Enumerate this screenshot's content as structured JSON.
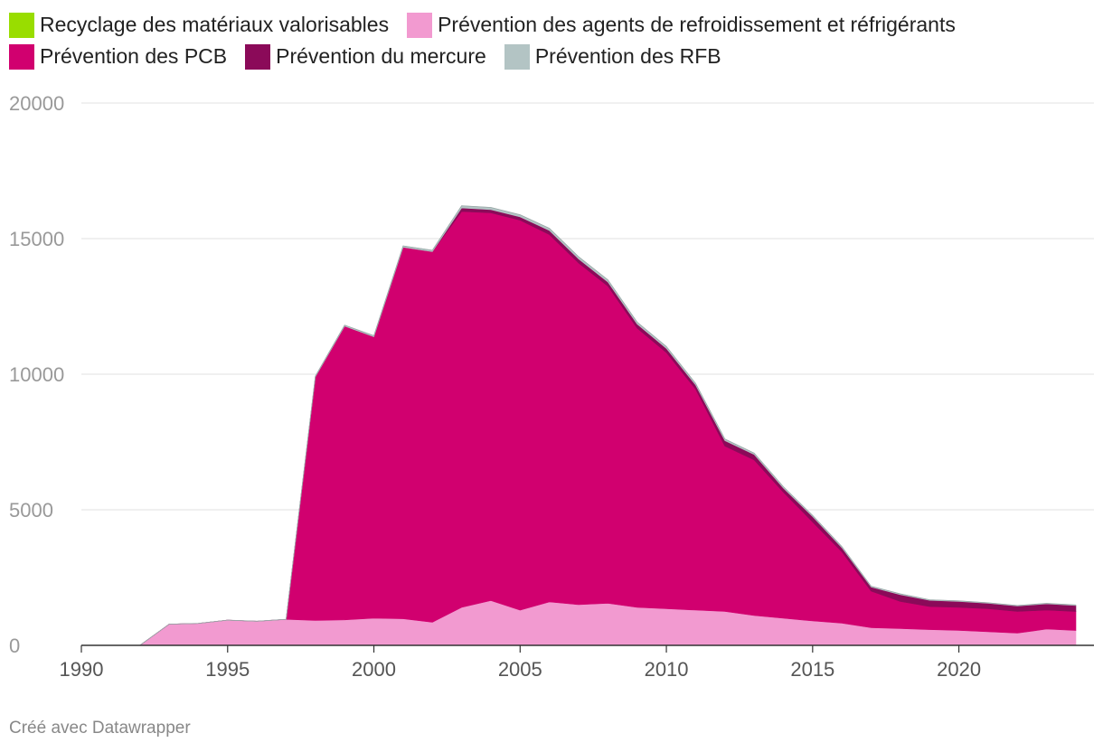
{
  "chart_data": {
    "type": "area",
    "stacked": true,
    "x": [
      1990,
      1991,
      1992,
      1993,
      1994,
      1995,
      1996,
      1997,
      1998,
      1999,
      2000,
      2001,
      2002,
      2003,
      2004,
      2005,
      2006,
      2007,
      2008,
      2009,
      2010,
      2011,
      2012,
      2013,
      2014,
      2015,
      2016,
      2017,
      2018,
      2019,
      2020,
      2021,
      2022,
      2023,
      2024
    ],
    "series": [
      {
        "name": "Recyclage des matériaux valorisables",
        "color": "#99dd00",
        "values": [
          0,
          0,
          0,
          0,
          0,
          0,
          0,
          0,
          0,
          0,
          0,
          0,
          0,
          0,
          0,
          0,
          0,
          0,
          0,
          0,
          0,
          0,
          0,
          0,
          0,
          0,
          0,
          0,
          0,
          0,
          0,
          0,
          0,
          0,
          0
        ]
      },
      {
        "name": "Prévention des agents de refroidissement et réfrigérants",
        "color": "#f29ad0",
        "values": [
          0,
          0,
          0,
          780,
          810,
          930,
          890,
          960,
          920,
          940,
          1000,
          980,
          850,
          1400,
          1650,
          1300,
          1600,
          1500,
          1550,
          1400,
          1350,
          1300,
          1250,
          1100,
          1000,
          900,
          820,
          650,
          620,
          580,
          550,
          500,
          450,
          600,
          550
        ]
      },
      {
        "name": "Prévention des PCB",
        "color": "#d1006f",
        "values": [
          0,
          0,
          0,
          0,
          0,
          0,
          0,
          0,
          8980,
          10830,
          10380,
          13700,
          13670,
          14600,
          14300,
          14380,
          13550,
          12600,
          11700,
          10300,
          9450,
          8150,
          6100,
          5740,
          4650,
          3650,
          2630,
          1350,
          1000,
          850,
          850,
          850,
          800,
          700,
          700
        ]
      },
      {
        "name": "Prévention du mercure",
        "color": "#8b0a59",
        "values": [
          0,
          0,
          0,
          0,
          0,
          0,
          0,
          0,
          0,
          0,
          0,
          0,
          0,
          130,
          120,
          120,
          150,
          150,
          150,
          150,
          150,
          150,
          200,
          200,
          150,
          200,
          150,
          150,
          250,
          230,
          220,
          200,
          200,
          230,
          220
        ]
      },
      {
        "name": "Prévention des RFB",
        "color": "#b3c4c4",
        "values": [
          0,
          0,
          0,
          0,
          0,
          0,
          0,
          0,
          30,
          40,
          40,
          50,
          50,
          80,
          80,
          80,
          80,
          80,
          80,
          70,
          70,
          60,
          60,
          50,
          50,
          40,
          40,
          30,
          30,
          20,
          20,
          20,
          20,
          20,
          20
        ]
      }
    ],
    "title": "",
    "xlabel": "",
    "ylabel": "",
    "xlim": [
      1990,
      2024
    ],
    "ylim": [
      0,
      20000
    ],
    "yticks": [
      "0",
      "5000",
      "10000",
      "15000",
      "20000"
    ],
    "xticks": [
      "1990",
      "1995",
      "2000",
      "2005",
      "2010",
      "2015",
      "2020"
    ],
    "grid": true,
    "legend_position": "top-left"
  },
  "footer": "Créé avec Datawrapper"
}
